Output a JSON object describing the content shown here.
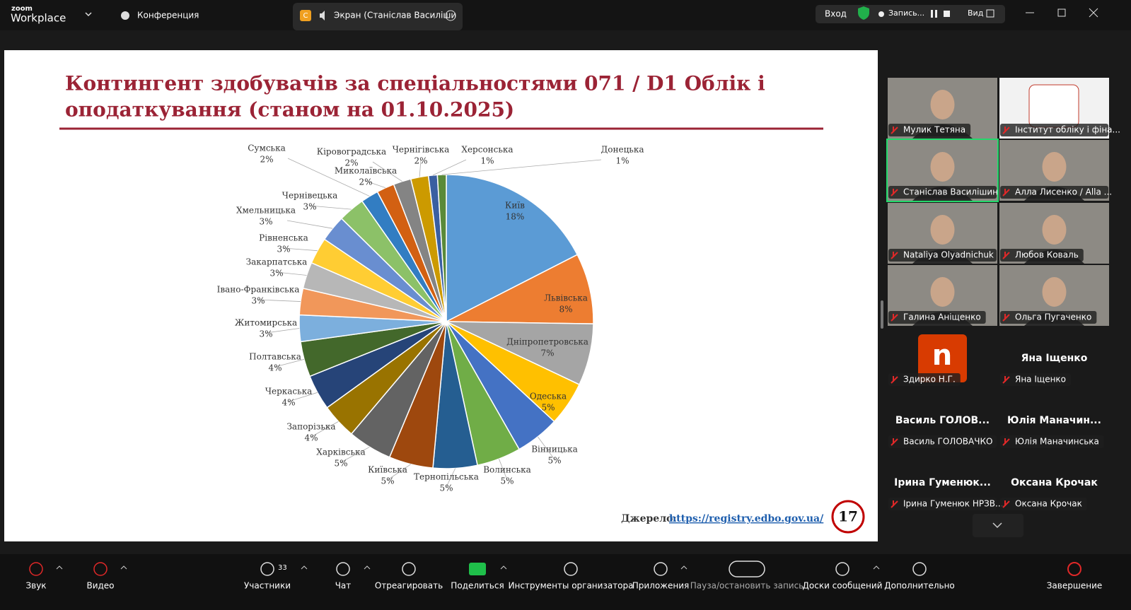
{
  "zoom": {
    "brand_top": "zoom",
    "brand": "Workplace",
    "meeting": "Конференция",
    "share_avatar": "С",
    "share_tab": "Экран (Станіслав Василіши",
    "login": "Вход",
    "recording": "Запись...",
    "view": "Вид"
  },
  "slide": {
    "title": [
      "Контингент здобувачів за спеціальностями 071 / D1 Облік і",
      "оподаткування (станом на 01.10.2025)"
    ],
    "source_label": "Джерело:",
    "source_link": "https://registry.edbo.gov.ua/",
    "page": "17"
  },
  "chart_data": {
    "type": "pie",
    "categories": [
      "Київ",
      "Львівська",
      "Дніпропетровська",
      "Одеська",
      "Вінницька",
      "Волинська",
      "Тернопільська",
      "Київська",
      "Харківська",
      "Запорізька",
      "Черкаська",
      "Полтавська",
      "Житомирська",
      "Івано-Франківська",
      "Закарпатська",
      "Рівненська",
      "Хмельницька",
      "Чернівецька",
      "Сумська",
      "Миколаївська",
      "Кіровоградська",
      "Чернігівська",
      "Херсонська",
      "Донецька"
    ],
    "values": [
      18,
      8,
      7,
      5,
      5,
      5,
      5,
      5,
      5,
      4,
      4,
      4,
      3,
      3,
      3,
      3,
      3,
      3,
      2,
      2,
      2,
      2,
      1,
      1
    ],
    "value_labels": [
      "18%",
      "8%",
      "7%",
      "5%",
      "5%",
      "5%",
      "5%",
      "5%",
      "5%",
      "4%",
      "4%",
      "4%",
      "3%",
      "3%",
      "3%",
      "3%",
      "3%",
      "3%",
      "2%",
      "2%",
      "2%",
      "2%",
      "1%",
      "1%"
    ],
    "colors": [
      "#5b9bd5",
      "#ed7d31",
      "#a5a5a5",
      "#ffc000",
      "#4472c4",
      "#70ad47",
      "#255e91",
      "#9e480e",
      "#636363",
      "#997300",
      "#264478",
      "#43682b",
      "#7cafdd",
      "#f1975a",
      "#b7b7b7",
      "#ffcd33",
      "#698ed0",
      "#8cc168",
      "#327dc2",
      "#d26012",
      "#848484",
      "#cc9a00",
      "#3a5fa1",
      "#5a8a39"
    ]
  },
  "participants": [
    {
      "label": "Мулик Тетяна"
    },
    {
      "label": "Інститут обліку і фіна..."
    },
    {
      "label": "Станіслав Василішин"
    },
    {
      "label": "Алла Лисенко / Alla ..."
    },
    {
      "label": "Nataliya Olyadnichuk"
    },
    {
      "label": "Любов Коваль"
    },
    {
      "label": "Галина Аніщенко"
    },
    {
      "label": "Ольга Пугаченко"
    },
    {
      "label": "Здирко Н.Г.",
      "avatar": "n"
    },
    {
      "label": "Яна Іщенко",
      "heading": "Яна Іщенко"
    },
    {
      "label": "Василь ГОЛОВАЧКО",
      "heading": "Василь  ГОЛОВ..."
    },
    {
      "label": "Юлія Маначинська",
      "heading": "Юлія  Маначин..."
    },
    {
      "label": "Ірина Гуменюк НРЗВ...",
      "heading": "Ірина  Гуменюк..."
    },
    {
      "label": "Оксана Крочак",
      "heading": "Оксана Крочак"
    }
  ],
  "toolbar": {
    "count": "33",
    "items": [
      "Звук",
      "Видео",
      "Участники",
      "Чат",
      "Отреагировать",
      "Поделиться",
      "Инструменты организатора",
      "Приложения",
      "Пауза/остановить запись",
      "Доски сообщений",
      "Дополнительно",
      "Завершение"
    ]
  }
}
